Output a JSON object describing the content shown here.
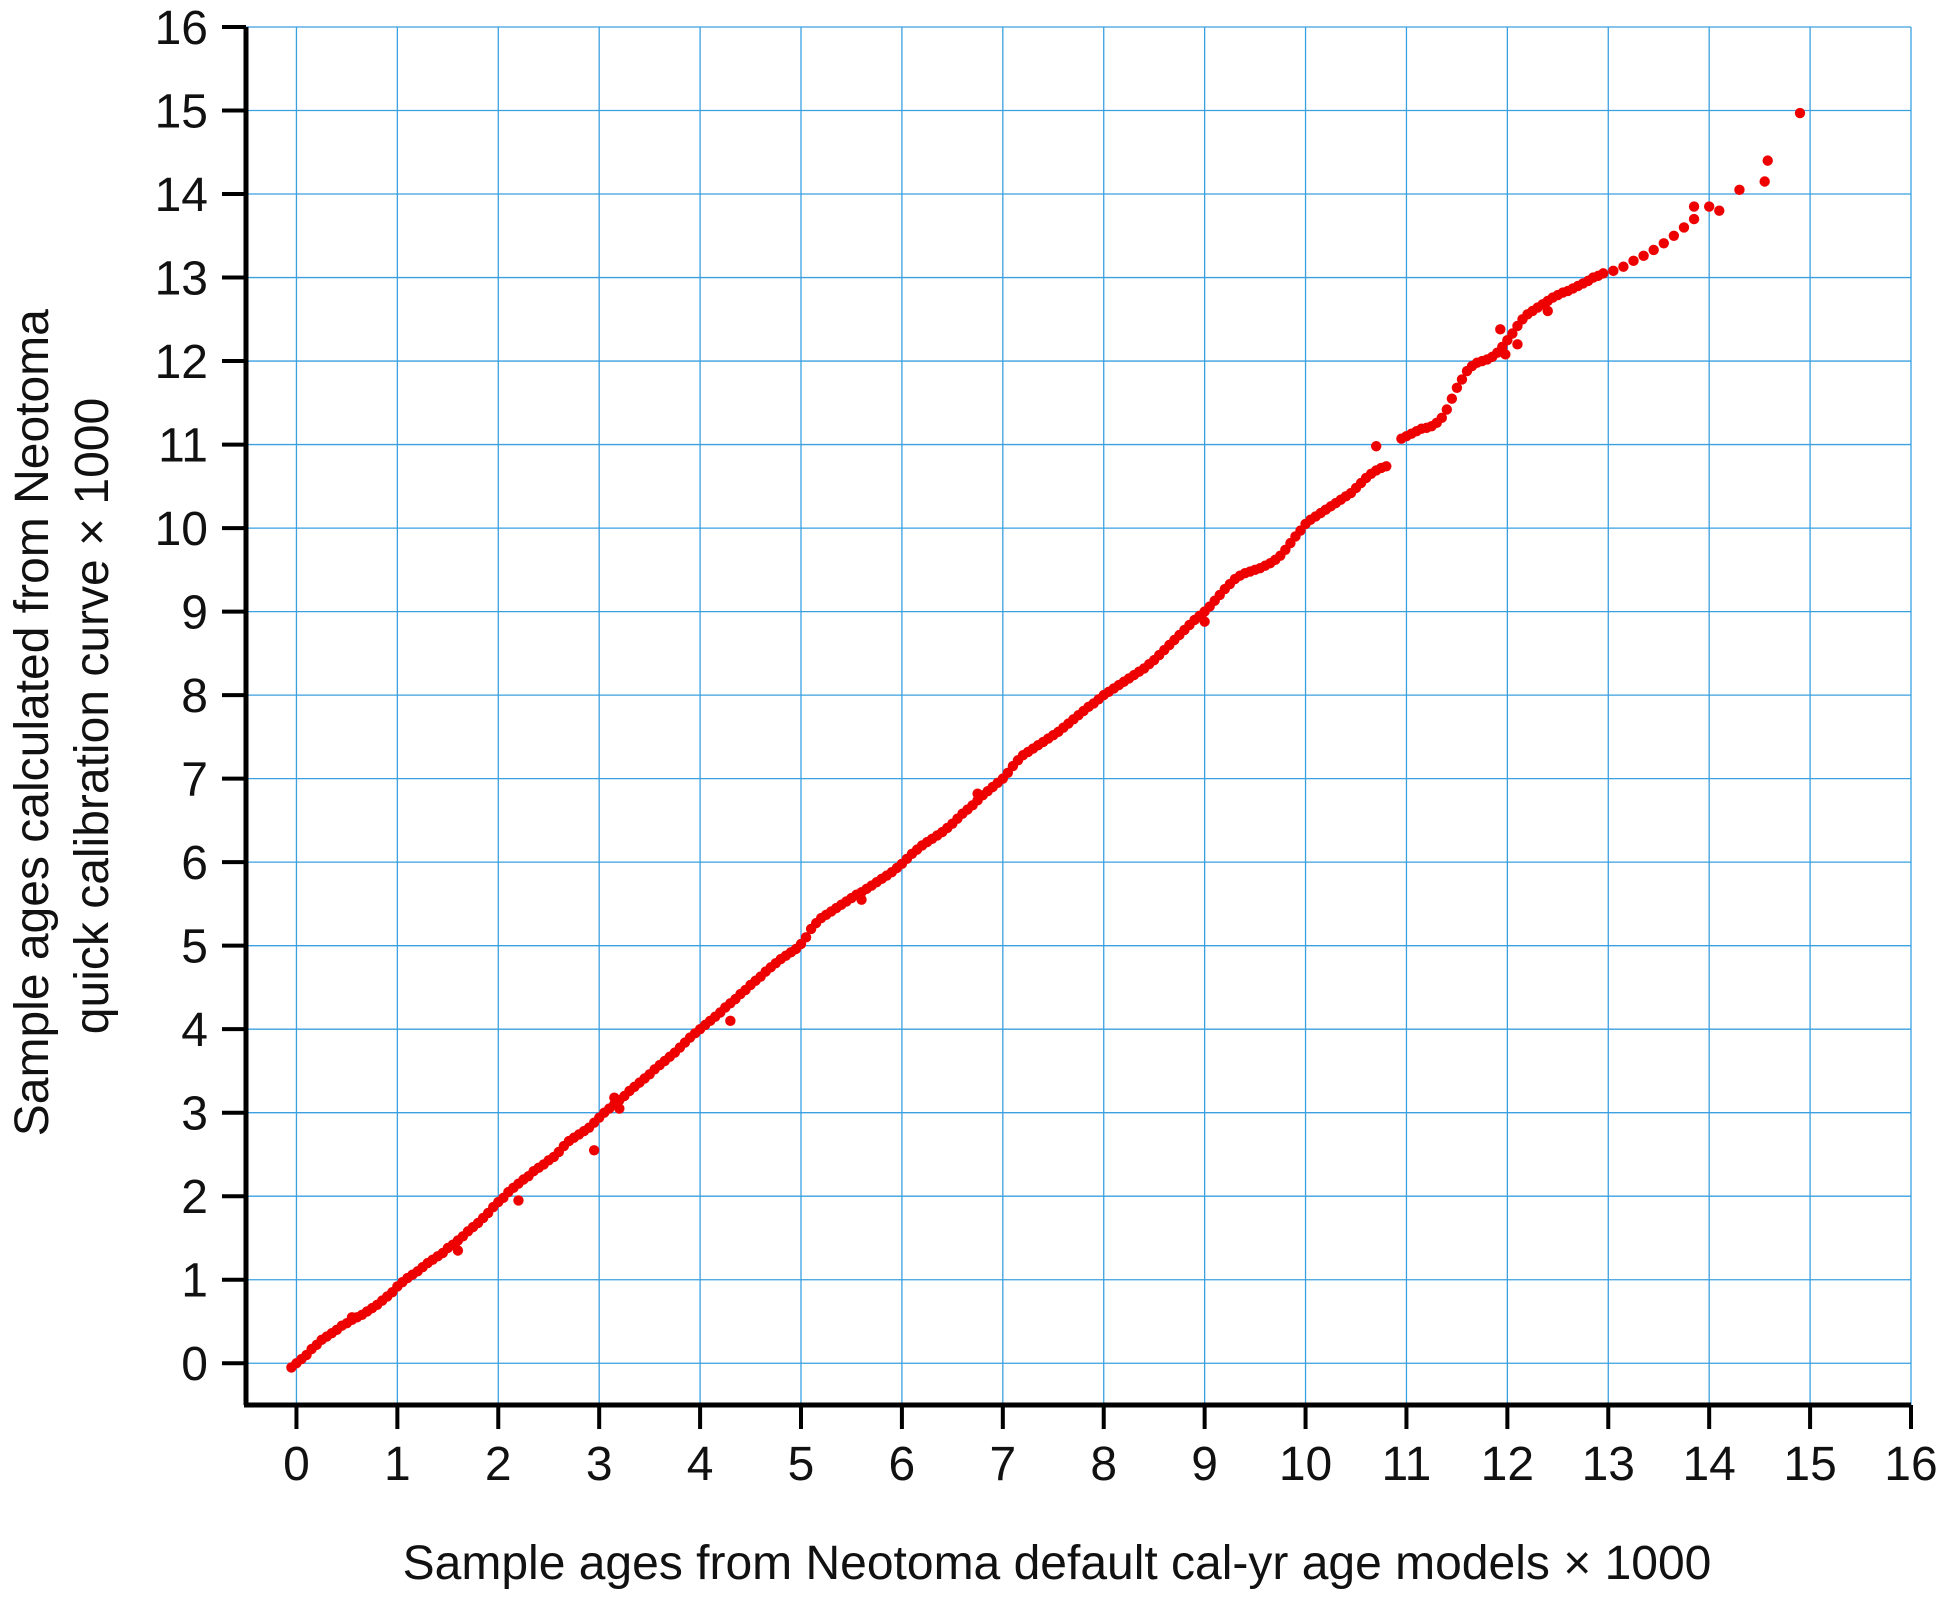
{
  "chart_data": {
    "type": "scatter",
    "title": "",
    "xlabel": "Sample ages from Neotoma default cal-yr age models × 1000",
    "ylabel_lines": [
      "Sample ages calculated from Neotoma",
      "quick calibration curve × 1000"
    ],
    "xlim": [
      -0.5,
      16
    ],
    "ylim": [
      -0.5,
      16
    ],
    "xticks": [
      0,
      1,
      2,
      3,
      4,
      5,
      6,
      7,
      8,
      9,
      10,
      11,
      12,
      13,
      14,
      15,
      16
    ],
    "yticks": [
      0,
      1,
      2,
      3,
      4,
      5,
      6,
      7,
      8,
      9,
      10,
      11,
      12,
      13,
      14,
      15,
      16
    ],
    "xtick_labels": [
      "0",
      "1",
      "2",
      "3",
      "4",
      "5",
      "6",
      "7",
      "8",
      "9",
      "10",
      "11",
      "12",
      "13",
      "14",
      "15",
      "16"
    ],
    "ytick_labels": [
      "0",
      "1",
      "2",
      "3",
      "4",
      "5",
      "6",
      "7",
      "8",
      "9",
      "10",
      "11",
      "12",
      "13",
      "14",
      "15",
      "16"
    ],
    "grid": true,
    "grid_color": "#3aa0e0",
    "marker_color": "#ee0000",
    "axis_color": "#000000",
    "points": [
      [
        -0.05,
        -0.05
      ],
      [
        0.0,
        0.0
      ],
      [
        0.05,
        0.05
      ],
      [
        0.1,
        0.1
      ],
      [
        0.15,
        0.17
      ],
      [
        0.2,
        0.22
      ],
      [
        0.25,
        0.28
      ],
      [
        0.3,
        0.32
      ],
      [
        0.35,
        0.36
      ],
      [
        0.4,
        0.4
      ],
      [
        0.45,
        0.45
      ],
      [
        0.5,
        0.48
      ],
      [
        0.55,
        0.52
      ],
      [
        0.6,
        0.55
      ],
      [
        0.65,
        0.58
      ],
      [
        0.7,
        0.62
      ],
      [
        0.75,
        0.66
      ],
      [
        0.8,
        0.7
      ],
      [
        0.85,
        0.75
      ],
      [
        0.9,
        0.8
      ],
      [
        0.95,
        0.85
      ],
      [
        1.0,
        0.92
      ],
      [
        1.05,
        0.97
      ],
      [
        1.1,
        1.02
      ],
      [
        1.15,
        1.06
      ],
      [
        1.2,
        1.1
      ],
      [
        1.25,
        1.15
      ],
      [
        1.3,
        1.2
      ],
      [
        1.35,
        1.24
      ],
      [
        1.4,
        1.28
      ],
      [
        1.45,
        1.32
      ],
      [
        1.5,
        1.38
      ],
      [
        1.55,
        1.42
      ],
      [
        1.6,
        1.47
      ],
      [
        1.65,
        1.52
      ],
      [
        1.7,
        1.58
      ],
      [
        1.75,
        1.63
      ],
      [
        1.8,
        1.68
      ],
      [
        1.85,
        1.74
      ],
      [
        1.9,
        1.8
      ],
      [
        1.95,
        1.87
      ],
      [
        2.0,
        1.93
      ],
      [
        2.05,
        1.98
      ],
      [
        2.1,
        2.05
      ],
      [
        2.15,
        2.1
      ],
      [
        2.2,
        2.15
      ],
      [
        2.25,
        2.2
      ],
      [
        2.3,
        2.24
      ],
      [
        2.35,
        2.3
      ],
      [
        2.4,
        2.34
      ],
      [
        2.45,
        2.38
      ],
      [
        2.5,
        2.43
      ],
      [
        2.55,
        2.47
      ],
      [
        2.6,
        2.53
      ],
      [
        2.65,
        2.6
      ],
      [
        2.7,
        2.66
      ],
      [
        2.75,
        2.7
      ],
      [
        2.8,
        2.74
      ],
      [
        2.85,
        2.78
      ],
      [
        2.9,
        2.82
      ],
      [
        2.95,
        2.88
      ],
      [
        3.0,
        2.94
      ],
      [
        3.05,
        3.0
      ],
      [
        3.1,
        3.05
      ],
      [
        3.15,
        3.1
      ],
      [
        3.2,
        3.15
      ],
      [
        3.25,
        3.2
      ],
      [
        3.3,
        3.26
      ],
      [
        3.35,
        3.31
      ],
      [
        3.4,
        3.36
      ],
      [
        3.45,
        3.41
      ],
      [
        3.5,
        3.46
      ],
      [
        3.55,
        3.52
      ],
      [
        3.6,
        3.57
      ],
      [
        3.65,
        3.62
      ],
      [
        3.7,
        3.67
      ],
      [
        3.75,
        3.72
      ],
      [
        3.8,
        3.78
      ],
      [
        3.85,
        3.84
      ],
      [
        3.9,
        3.9
      ],
      [
        3.95,
        3.95
      ],
      [
        4.0,
        4.0
      ],
      [
        4.05,
        4.05
      ],
      [
        4.1,
        4.1
      ],
      [
        4.15,
        4.15
      ],
      [
        4.2,
        4.2
      ],
      [
        4.25,
        4.26
      ],
      [
        4.3,
        4.31
      ],
      [
        4.35,
        4.36
      ],
      [
        4.4,
        4.42
      ],
      [
        4.45,
        4.47
      ],
      [
        4.5,
        4.53
      ],
      [
        4.55,
        4.58
      ],
      [
        4.6,
        4.63
      ],
      [
        4.65,
        4.69
      ],
      [
        4.7,
        4.74
      ],
      [
        4.75,
        4.79
      ],
      [
        4.8,
        4.84
      ],
      [
        4.85,
        4.88
      ],
      [
        4.9,
        4.92
      ],
      [
        4.95,
        4.96
      ],
      [
        5.0,
        5.02
      ],
      [
        5.05,
        5.1
      ],
      [
        5.1,
        5.2
      ],
      [
        5.15,
        5.27
      ],
      [
        5.2,
        5.33
      ],
      [
        5.25,
        5.37
      ],
      [
        5.3,
        5.41
      ],
      [
        5.35,
        5.45
      ],
      [
        5.4,
        5.49
      ],
      [
        5.45,
        5.53
      ],
      [
        5.5,
        5.57
      ],
      [
        5.55,
        5.61
      ],
      [
        5.6,
        5.64
      ],
      [
        5.65,
        5.68
      ],
      [
        5.7,
        5.72
      ],
      [
        5.75,
        5.76
      ],
      [
        5.8,
        5.8
      ],
      [
        5.85,
        5.84
      ],
      [
        5.9,
        5.88
      ],
      [
        5.95,
        5.93
      ],
      [
        6.0,
        5.98
      ],
      [
        6.05,
        6.04
      ],
      [
        6.1,
        6.1
      ],
      [
        6.15,
        6.15
      ],
      [
        6.2,
        6.2
      ],
      [
        6.25,
        6.24
      ],
      [
        6.3,
        6.28
      ],
      [
        6.35,
        6.32
      ],
      [
        6.4,
        6.36
      ],
      [
        6.45,
        6.41
      ],
      [
        6.5,
        6.46
      ],
      [
        6.55,
        6.52
      ],
      [
        6.6,
        6.58
      ],
      [
        6.65,
        6.63
      ],
      [
        6.7,
        6.68
      ],
      [
        6.75,
        6.74
      ],
      [
        6.8,
        6.8
      ],
      [
        6.85,
        6.85
      ],
      [
        6.9,
        6.9
      ],
      [
        6.95,
        6.95
      ],
      [
        7.0,
        7.0
      ],
      [
        7.05,
        7.07
      ],
      [
        7.1,
        7.15
      ],
      [
        7.15,
        7.22
      ],
      [
        7.2,
        7.28
      ],
      [
        7.25,
        7.32
      ],
      [
        7.3,
        7.36
      ],
      [
        7.35,
        7.4
      ],
      [
        7.4,
        7.44
      ],
      [
        7.45,
        7.48
      ],
      [
        7.5,
        7.52
      ],
      [
        7.55,
        7.56
      ],
      [
        7.6,
        7.61
      ],
      [
        7.65,
        7.66
      ],
      [
        7.7,
        7.71
      ],
      [
        7.75,
        7.76
      ],
      [
        7.8,
        7.81
      ],
      [
        7.85,
        7.86
      ],
      [
        7.9,
        7.9
      ],
      [
        7.95,
        7.95
      ],
      [
        8.0,
        8.0
      ],
      [
        8.05,
        8.04
      ],
      [
        8.1,
        8.08
      ],
      [
        8.15,
        8.12
      ],
      [
        8.2,
        8.16
      ],
      [
        8.25,
        8.2
      ],
      [
        8.3,
        8.24
      ],
      [
        8.35,
        8.28
      ],
      [
        8.4,
        8.32
      ],
      [
        8.45,
        8.37
      ],
      [
        8.5,
        8.42
      ],
      [
        8.55,
        8.48
      ],
      [
        8.6,
        8.54
      ],
      [
        8.65,
        8.6
      ],
      [
        8.7,
        8.66
      ],
      [
        8.75,
        8.72
      ],
      [
        8.8,
        8.78
      ],
      [
        8.85,
        8.84
      ],
      [
        8.9,
        8.9
      ],
      [
        8.95,
        8.95
      ],
      [
        9.0,
        9.0
      ],
      [
        9.05,
        9.06
      ],
      [
        9.1,
        9.13
      ],
      [
        9.15,
        9.2
      ],
      [
        9.2,
        9.27
      ],
      [
        9.25,
        9.33
      ],
      [
        9.3,
        9.39
      ],
      [
        9.35,
        9.43
      ],
      [
        9.4,
        9.46
      ],
      [
        9.45,
        9.48
      ],
      [
        9.5,
        9.5
      ],
      [
        9.55,
        9.52
      ],
      [
        9.6,
        9.55
      ],
      [
        9.65,
        9.58
      ],
      [
        9.7,
        9.62
      ],
      [
        9.75,
        9.67
      ],
      [
        9.8,
        9.74
      ],
      [
        9.85,
        9.82
      ],
      [
        9.9,
        9.9
      ],
      [
        9.95,
        9.97
      ],
      [
        10.0,
        10.05
      ],
      [
        10.05,
        10.1
      ],
      [
        10.1,
        10.14
      ],
      [
        10.15,
        10.18
      ],
      [
        10.2,
        10.22
      ],
      [
        10.25,
        10.26
      ],
      [
        10.3,
        10.3
      ],
      [
        10.35,
        10.34
      ],
      [
        10.4,
        10.38
      ],
      [
        10.45,
        10.42
      ],
      [
        10.5,
        10.48
      ],
      [
        10.55,
        10.54
      ],
      [
        10.6,
        10.6
      ],
      [
        10.65,
        10.65
      ],
      [
        10.7,
        10.69
      ],
      [
        10.75,
        10.72
      ],
      [
        10.8,
        10.74
      ],
      [
        10.7,
        10.98
      ],
      [
        10.95,
        11.07
      ],
      [
        11.0,
        11.1
      ],
      [
        11.05,
        11.13
      ],
      [
        11.1,
        11.16
      ],
      [
        11.15,
        11.19
      ],
      [
        11.2,
        11.2
      ],
      [
        11.25,
        11.22
      ],
      [
        11.3,
        11.26
      ],
      [
        11.35,
        11.32
      ],
      [
        11.4,
        11.42
      ],
      [
        11.45,
        11.55
      ],
      [
        11.5,
        11.68
      ],
      [
        11.55,
        11.78
      ],
      [
        11.6,
        11.88
      ],
      [
        11.65,
        11.94
      ],
      [
        11.7,
        11.98
      ],
      [
        11.75,
        12.0
      ],
      [
        11.8,
        12.02
      ],
      [
        11.85,
        12.05
      ],
      [
        11.9,
        12.1
      ],
      [
        11.95,
        12.17
      ],
      [
        12.0,
        12.25
      ],
      [
        12.05,
        12.33
      ],
      [
        12.1,
        12.42
      ],
      [
        12.15,
        12.5
      ],
      [
        12.2,
        12.56
      ],
      [
        12.25,
        12.6
      ],
      [
        12.3,
        12.64
      ],
      [
        12.35,
        12.68
      ],
      [
        12.4,
        12.72
      ],
      [
        12.45,
        12.76
      ],
      [
        12.5,
        12.79
      ],
      [
        12.55,
        12.82
      ],
      [
        12.6,
        12.84
      ],
      [
        12.65,
        12.87
      ],
      [
        12.7,
        12.9
      ],
      [
        12.75,
        12.93
      ],
      [
        12.8,
        12.96
      ],
      [
        12.85,
        13.0
      ],
      [
        12.9,
        13.02
      ],
      [
        12.95,
        13.05
      ],
      [
        13.05,
        13.08
      ],
      [
        13.15,
        13.13
      ],
      [
        13.25,
        13.2
      ],
      [
        13.35,
        13.26
      ],
      [
        13.45,
        13.33
      ],
      [
        13.55,
        13.41
      ],
      [
        13.65,
        13.5
      ],
      [
        13.75,
        13.6
      ],
      [
        13.85,
        13.7
      ],
      [
        13.85,
        13.85
      ],
      [
        14.0,
        13.85
      ],
      [
        14.1,
        13.8
      ],
      [
        14.3,
        14.05
      ],
      [
        14.55,
        14.15
      ],
      [
        14.58,
        14.4
      ],
      [
        14.9,
        14.97
      ],
      [
        11.93,
        12.38
      ],
      [
        11.98,
        12.08
      ],
      [
        12.1,
        12.2
      ],
      [
        9.0,
        8.88
      ],
      [
        2.95,
        2.55
      ],
      [
        3.2,
        3.05
      ],
      [
        4.3,
        4.1
      ],
      [
        1.6,
        1.35
      ],
      [
        2.2,
        1.95
      ],
      [
        0.55,
        0.55
      ],
      [
        3.15,
        3.18
      ],
      [
        12.4,
        12.6
      ],
      [
        6.75,
        6.82
      ],
      [
        5.6,
        5.55
      ]
    ]
  }
}
